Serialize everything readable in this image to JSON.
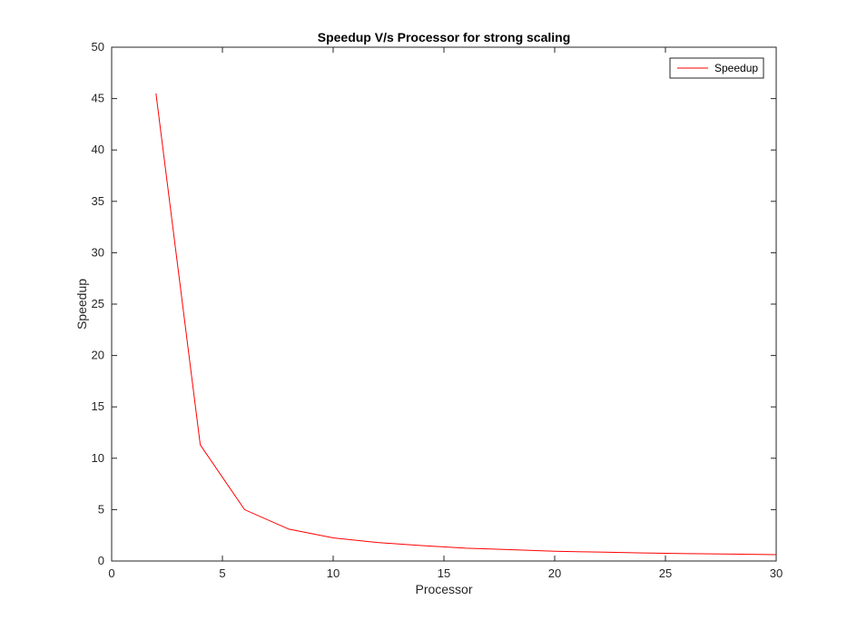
{
  "chart_data": {
    "type": "line",
    "title": "Speedup V/s Processor for strong scaling",
    "xlabel": "Processor",
    "ylabel": "Speedup",
    "xlim": [
      0,
      30
    ],
    "ylim": [
      0,
      50
    ],
    "xticks": [
      0,
      5,
      10,
      15,
      20,
      25,
      30
    ],
    "yticks": [
      0,
      5,
      10,
      15,
      20,
      25,
      30,
      35,
      40,
      45,
      50
    ],
    "grid": false,
    "legend_position": "top-right",
    "series": [
      {
        "name": "Speedup",
        "color": "#ff0000",
        "x": [
          2,
          4,
          6,
          8,
          10,
          12,
          14,
          16,
          18,
          20,
          22,
          24,
          26,
          28,
          30
        ],
        "y": [
          45.5,
          11.3,
          5.0,
          3.1,
          2.25,
          1.8,
          1.5,
          1.25,
          1.1,
          0.95,
          0.87,
          0.78,
          0.72,
          0.67,
          0.62
        ]
      }
    ]
  }
}
